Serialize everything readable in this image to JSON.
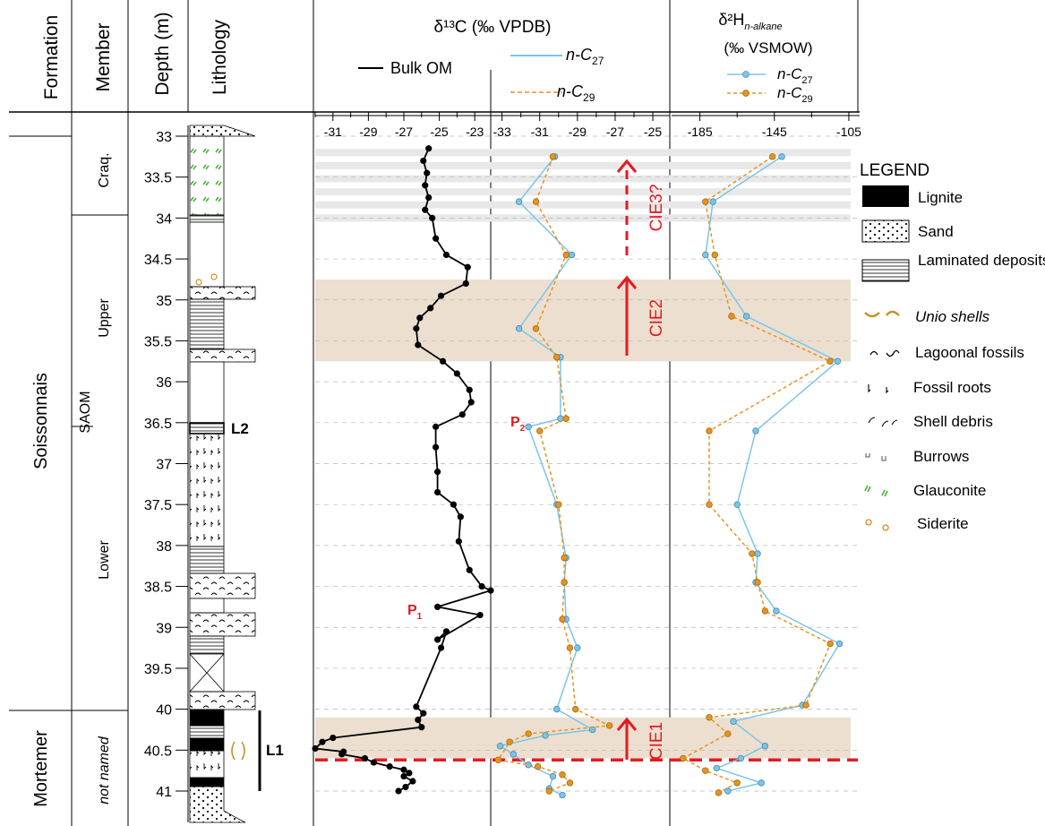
{
  "headers": {
    "formation": "Formation",
    "member": "Member",
    "depth": "Depth (m)",
    "lithology": "Lithology",
    "d13c_title": "δ¹³C (‰ VPDB)",
    "d2h_title": "δ²H",
    "d2h_sub": "n-alkane",
    "d2h_unit": "(‰ VSMOW)"
  },
  "legend_inline": {
    "bulk": "Bulk OM",
    "c27": "n-C",
    "c27_sub": "27",
    "c29": "n-C",
    "c29_sub": "29"
  },
  "units": {
    "formation_upper": "Soissonnais",
    "formation_lower": "Mortemer",
    "member_craq": "Craq.",
    "member_upper": "Upper",
    "member_saom": "SAOM",
    "member_lower": "Lower",
    "member_notnamed": "not named",
    "lignite_l1": "L1",
    "lignite_l2": "L2"
  },
  "annotations": {
    "cie1": "CIE1",
    "cie2": "CIE2",
    "cie3": "CIE3?",
    "p1": "P",
    "p1_sub": "1",
    "p2": "P",
    "p2_sub": "2"
  },
  "legend": {
    "title": "LEGEND",
    "items": [
      "Lignite",
      "Sand",
      "Laminated deposits",
      "Unio shells",
      "Lagoonal fossils",
      "Fossil roots",
      "Shell debris",
      "Burrows",
      "Glauconite",
      "Siderite"
    ]
  },
  "colors": {
    "c27": "#79c6ea",
    "c29": "#e69420",
    "cie_band": "#ecdfd0",
    "grey_band": "#e8e8e8",
    "red": "#e11b22",
    "bulk": "#000000"
  },
  "chart_data": {
    "type": "line",
    "depth_axis": {
      "label": "Depth (m)",
      "range": [
        32.9,
        41.3
      ],
      "ticks": [
        33,
        33.5,
        34,
        34.5,
        35,
        35.5,
        36,
        36.5,
        37,
        37.5,
        38,
        38.5,
        39,
        39.5,
        40,
        40.5,
        41
      ]
    },
    "panels": [
      {
        "name": "bulk",
        "xlabel": "δ¹³C (‰ VPDB)",
        "xlim": [
          -32,
          -22.1
        ],
        "xticks": [
          -31,
          -29,
          -27,
          -25,
          -23
        ],
        "series": [
          {
            "name": "Bulk OM",
            "points": [
              [
                -25.6,
                33.15
              ],
              [
                -25.9,
                33.3
              ],
              [
                -25.7,
                33.45
              ],
              [
                -25.8,
                33.6
              ],
              [
                -25.6,
                33.75
              ],
              [
                -25.8,
                33.9
              ],
              [
                -25.4,
                34.0
              ],
              [
                -25.2,
                34.25
              ],
              [
                -24.6,
                34.45
              ],
              [
                -23.4,
                34.6
              ],
              [
                -23.5,
                34.8
              ],
              [
                -24.9,
                34.95
              ],
              [
                -25.5,
                35.1
              ],
              [
                -26.1,
                35.22
              ],
              [
                -26.3,
                35.35
              ],
              [
                -26.2,
                35.55
              ],
              [
                -24.8,
                35.75
              ],
              [
                -24.0,
                35.9
              ],
              [
                -23.3,
                36.1
              ],
              [
                -23.2,
                36.25
              ],
              [
                -23.7,
                36.4
              ],
              [
                -25.2,
                36.55
              ],
              [
                -25.2,
                36.8
              ],
              [
                -25.1,
                37.1
              ],
              [
                -25.1,
                37.35
              ],
              [
                -24.2,
                37.5
              ],
              [
                -23.8,
                37.65
              ],
              [
                -23.9,
                37.95
              ],
              [
                -23.3,
                38.3
              ],
              [
                -22.6,
                38.5
              ],
              [
                -22.1,
                38.55
              ],
              [
                -25.1,
                38.75
              ],
              [
                -22.7,
                38.85
              ],
              [
                -25.1,
                39.15
              ],
              [
                -24.6,
                39.05
              ],
              [
                -24.9,
                39.25
              ],
              [
                -26.3,
                39.97
              ],
              [
                -25.9,
                40.05
              ],
              [
                -26.2,
                40.13
              ],
              [
                -26.0,
                40.22
              ],
              [
                -31.0,
                40.35
              ],
              [
                -31.6,
                40.4
              ],
              [
                -32.0,
                40.48
              ],
              [
                -30.4,
                40.52
              ],
              [
                -30.5,
                40.55
              ],
              [
                -29.2,
                40.6
              ],
              [
                -28.7,
                40.65
              ],
              [
                -27.8,
                40.7
              ],
              [
                -27.0,
                40.74
              ],
              [
                -26.7,
                40.78
              ],
              [
                -27.0,
                40.82
              ],
              [
                -26.5,
                40.88
              ],
              [
                -26.9,
                40.95
              ],
              [
                -27.3,
                41.0
              ]
            ]
          }
        ]
      },
      {
        "name": "dc_nalkane",
        "xlabel": "δ¹³C (‰ VPDB)",
        "xlim": [
          -33.6,
          -24.1
        ],
        "xticks": [
          -33,
          -31,
          -29,
          -27,
          -25
        ],
        "series": [
          {
            "name": "n-C27",
            "points": [
              [
                -30.2,
                33.25
              ],
              [
                -32.1,
                33.8
              ],
              [
                -29.3,
                34.45
              ],
              [
                -32.1,
                35.35
              ],
              [
                -29.9,
                35.7
              ],
              [
                -29.9,
                36.45
              ],
              [
                -31.6,
                36.55
              ],
              [
                -30.1,
                37.5
              ],
              [
                -29.6,
                38.15
              ],
              [
                -29.7,
                38.45
              ],
              [
                -29.6,
                38.9
              ],
              [
                -29.0,
                39.25
              ],
              [
                -30.1,
                40.0
              ],
              [
                -28.2,
                40.25
              ],
              [
                -30.7,
                40.32
              ],
              [
                -33.1,
                40.45
              ],
              [
                -32.4,
                40.55
              ],
              [
                -31.6,
                40.68
              ],
              [
                -30.3,
                40.82
              ],
              [
                -30.5,
                40.97
              ],
              [
                -29.8,
                41.05
              ]
            ]
          },
          {
            "name": "n-C29",
            "points": [
              [
                -30.3,
                33.25
              ],
              [
                -31.2,
                33.8
              ],
              [
                -29.6,
                34.45
              ],
              [
                -31.2,
                35.35
              ],
              [
                -30.1,
                35.7
              ],
              [
                -29.6,
                36.45
              ],
              [
                -31.0,
                36.6
              ],
              [
                -30.0,
                37.5
              ],
              [
                -29.7,
                38.15
              ],
              [
                -29.7,
                38.45
              ],
              [
                -29.8,
                38.9
              ],
              [
                -29.4,
                39.25
              ],
              [
                -29.1,
                40.0
              ],
              [
                -27.3,
                40.2
              ],
              [
                -31.6,
                40.3
              ],
              [
                -32.6,
                40.4
              ],
              [
                -33.2,
                40.62
              ],
              [
                -31.1,
                40.7
              ],
              [
                -29.8,
                40.8
              ],
              [
                -29.4,
                40.9
              ],
              [
                -30.5,
                41.0
              ]
            ]
          }
        ]
      },
      {
        "name": "dh",
        "xlabel": "δ²H n-alkane (‰ VSMOW)",
        "xlim": [
          -200.2,
          -99.2
        ],
        "xticks": [
          -185,
          -145,
          -105
        ],
        "series": [
          {
            "name": "n-C27",
            "points": [
              [
                -141,
                33.25
              ],
              [
                -178,
                33.8
              ],
              [
                -182,
                34.45
              ],
              [
                -160,
                35.2
              ],
              [
                -111,
                35.75
              ],
              [
                -155,
                36.6
              ],
              [
                -165,
                37.5
              ],
              [
                -154,
                38.1
              ],
              [
                -155,
                38.45
              ],
              [
                -144,
                38.8
              ],
              [
                -110,
                39.2
              ],
              [
                -130,
                39.95
              ],
              [
                -167,
                40.15
              ],
              [
                -150,
                40.45
              ],
              [
                -163,
                40.6
              ],
              [
                -176,
                40.72
              ],
              [
                -152,
                40.9
              ],
              [
                -170,
                41.0
              ]
            ]
          },
          {
            "name": "n-C29",
            "points": [
              [
                -146,
                33.25
              ],
              [
                -182,
                33.8
              ],
              [
                -177,
                34.45
              ],
              [
                -168,
                35.2
              ],
              [
                -115,
                35.75
              ],
              [
                -180,
                36.6
              ],
              [
                -180,
                37.5
              ],
              [
                -157,
                38.1
              ],
              [
                -154,
                38.45
              ],
              [
                -150,
                38.8
              ],
              [
                -115,
                39.2
              ],
              [
                -128,
                39.95
              ],
              [
                -180,
                40.1
              ],
              [
                -170,
                40.3
              ],
              [
                -194,
                40.6
              ],
              [
                -182,
                40.75
              ],
              [
                -165,
                40.9
              ],
              [
                -175,
                41.02
              ]
            ]
          }
        ]
      }
    ],
    "bands": [
      {
        "label": "CIE1",
        "from": 40.1,
        "to": 40.6,
        "kind": "cie"
      },
      {
        "label": "CIE2",
        "from": 34.75,
        "to": 35.75,
        "kind": "cie"
      },
      {
        "label": "CIE3?",
        "from": 33.2,
        "to": 34.15,
        "kind": "grey"
      }
    ],
    "boundary_depth": 40.62,
    "grid": true
  }
}
